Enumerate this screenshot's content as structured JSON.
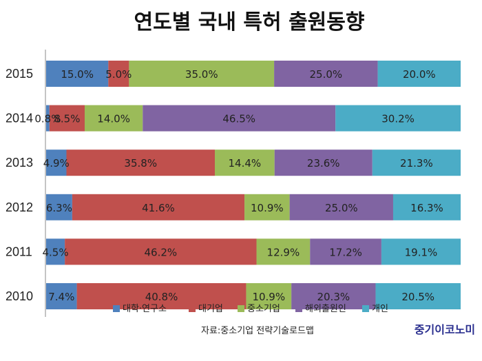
{
  "chart_data": {
    "type": "bar",
    "orientation": "horizontal",
    "stacked": "percent",
    "title": "연도별 국내 특허 출원동향",
    "categories": [
      "2015",
      "2014",
      "2013",
      "2012",
      "2011",
      "2010"
    ],
    "series": [
      {
        "name": "대학·연구소",
        "color": "#4f81bd",
        "values": [
          15.0,
          0.8,
          4.9,
          6.3,
          4.5,
          7.4
        ],
        "labels": [
          "15.0%",
          "0.8%",
          "4.9%",
          "6.3%",
          "4.5%",
          "7.4%"
        ]
      },
      {
        "name": "대기업",
        "color": "#c0504d",
        "values": [
          5.0,
          8.5,
          35.8,
          41.6,
          46.2,
          40.8
        ],
        "labels": [
          "5.0%",
          "8.5%",
          "35.8%",
          "41.6%",
          "46.2%",
          "40.8%"
        ]
      },
      {
        "name": "중소기업",
        "color": "#9bbb59",
        "values": [
          35.0,
          14.0,
          14.4,
          10.9,
          12.9,
          10.9
        ],
        "labels": [
          "35.0%",
          "14.0%",
          "14.4%",
          "10.9%",
          "12.9%",
          "10.9%"
        ]
      },
      {
        "name": "해외출원인",
        "color": "#8064a2",
        "values": [
          25.0,
          46.5,
          23.6,
          25.0,
          17.2,
          20.3
        ],
        "labels": [
          "25.0%",
          "46.5%",
          "23.6%",
          "25.0%",
          "17.2%",
          "20.3%"
        ]
      },
      {
        "name": "개인",
        "color": "#4bacc6",
        "values": [
          20.0,
          30.2,
          21.3,
          16.3,
          19.1,
          20.5
        ],
        "labels": [
          "20.0%",
          "30.2%",
          "21.3%",
          "16.3%",
          "19.1%",
          "20.5%"
        ]
      }
    ],
    "xlim": [
      0,
      100
    ],
    "grid": false,
    "legend_position": "bottom"
  },
  "source": "자료:중소기업 전략기술로드맵",
  "brand": "중기이코노미"
}
